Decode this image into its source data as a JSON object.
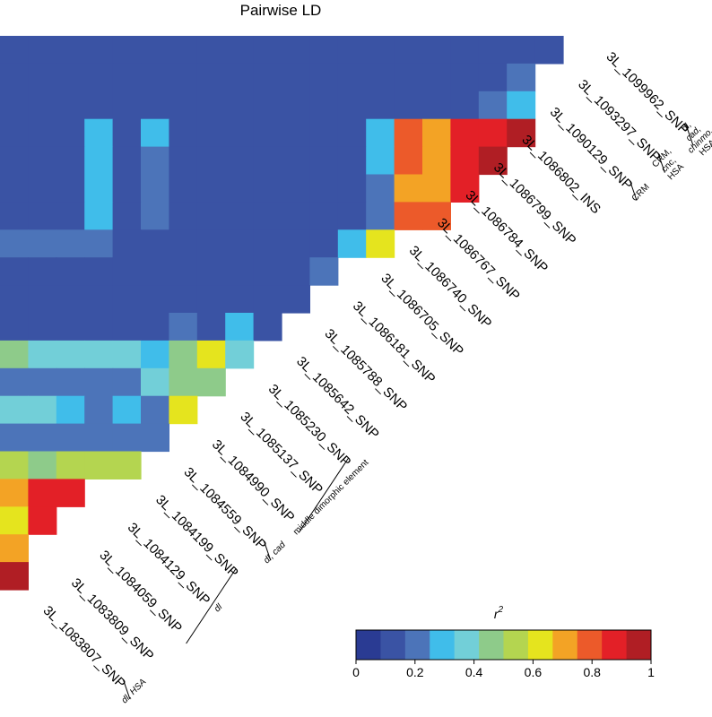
{
  "chart_data": {
    "type": "heatmap",
    "title": "Pairwise LD",
    "legend": {
      "title": "r",
      "title_superscript": "2",
      "ticks": [
        "0",
        "0.2",
        "0.4",
        "0.6",
        "0.8",
        "1"
      ],
      "tick_values": [
        0,
        0.2,
        0.4,
        0.6,
        0.8,
        1
      ],
      "range": [
        0,
        1
      ],
      "position": "bottom-right"
    },
    "color_stops": [
      "#2a3b93",
      "#3a53a4",
      "#4c74b9",
      "#40bdea",
      "#72cfd8",
      "#8ecb8a",
      "#b4d550",
      "#e5e41e",
      "#f3a325",
      "#ec5a2a",
      "#e32027",
      "#b01e24"
    ],
    "markers": [
      "3L_1099962_SNP",
      "3L_1093297_SNP",
      "3L_1090129_SNP",
      "3L_1086802_INS",
      "3L_1086799_SNP",
      "3L_1086784_SNP",
      "3L_1086767_SNP",
      "3L_1086740_SNP",
      "3L_1086705_SNP",
      "3L_1086181_SNP",
      "3L_1085788_SNP",
      "3L_1085642_SNP",
      "3L_1085230_SNP",
      "3L_1085137_SNP",
      "3L_1084990_SNP",
      "3L_1084559_SNP",
      "3L_1084199_SNP",
      "3L_1084129_SNP",
      "3L_1084059_SNP",
      "3L_1083809_SNP",
      "3L_1083807_SNP"
    ],
    "rows": [
      [
        0.12,
        0.12,
        0.12,
        0.12,
        0.12,
        0.12,
        0.12,
        0.12,
        0.12,
        0.12,
        0.12,
        0.15,
        0.12,
        0.12,
        0.12,
        0.12,
        0.12,
        0.12,
        0.12,
        0.12
      ],
      [
        0.12,
        0.12,
        0.12,
        0.12,
        0.12,
        0.15,
        0.12,
        0.15,
        0.15,
        0.15,
        0.15,
        0.15,
        0.12,
        0.12,
        0.15,
        0.15,
        0.15,
        0.15,
        0.2
      ],
      [
        0.15,
        0.15,
        0.15,
        0.12,
        0.15,
        0.12,
        0.15,
        0.15,
        0.15,
        0.12,
        0.15,
        0.12,
        0.12,
        0.12,
        0.15,
        0.15,
        0.15,
        0.23,
        0.3
      ],
      [
        0.15,
        0.15,
        0.15,
        0.3,
        0.15,
        0.3,
        0.15,
        0.15,
        0.15,
        0.15,
        0.15,
        0.15,
        0.15,
        0.3,
        0.78,
        0.68,
        0.86,
        0.9,
        0.98
      ],
      [
        0.15,
        0.15,
        0.15,
        0.3,
        0.15,
        0.22,
        0.15,
        0.15,
        0.15,
        0.15,
        0.15,
        0.15,
        0.15,
        0.3,
        0.78,
        0.7,
        0.88,
        0.92
      ],
      [
        0.15,
        0.15,
        0.15,
        0.3,
        0.15,
        0.22,
        0.15,
        0.12,
        0.15,
        0.15,
        0.15,
        0.15,
        0.15,
        0.2,
        0.72,
        0.7,
        0.88
      ],
      [
        0.15,
        0.15,
        0.15,
        0.3,
        0.15,
        0.22,
        0.15,
        0.15,
        0.15,
        0.12,
        0.15,
        0.15,
        0.15,
        0.2,
        0.78,
        0.78
      ],
      [
        0.2,
        0.2,
        0.2,
        0.2,
        0.15,
        0.15,
        0.15,
        0.15,
        0.15,
        0.15,
        0.15,
        0.12,
        0.3,
        0.6
      ],
      [
        0.15,
        0.12,
        0.15,
        0.15,
        0.15,
        0.15,
        0.15,
        0.15,
        0.12,
        0.15,
        0.15,
        0.2
      ],
      [
        0.12,
        0.12,
        0.12,
        0.12,
        0.12,
        0.12,
        0.12,
        0.12,
        0.15,
        0.15,
        0.15
      ],
      [
        0.12,
        0.12,
        0.12,
        0.1,
        0.1,
        0.12,
        0.22,
        0.12,
        0.3,
        0.12
      ],
      [
        0.42,
        0.38,
        0.35,
        0.35,
        0.35,
        0.28,
        0.42,
        0.62,
        0.35
      ],
      [
        0.2,
        0.2,
        0.2,
        0.2,
        0.2,
        0.38,
        0.45,
        0.48
      ],
      [
        0.35,
        0.35,
        0.3,
        0.2,
        0.3,
        0.2,
        0.66
      ],
      [
        0.2,
        0.2,
        0.2,
        0.2,
        0.2,
        0.2
      ],
      [
        0.5,
        0.45,
        0.5,
        0.5,
        0.55
      ],
      [
        0.73,
        0.85,
        0.9
      ],
      [
        0.65,
        0.85
      ],
      [
        0.73
      ],
      [
        0.93
      ]
    ],
    "annotations": [
      {
        "lines": [
          "dl,",
          "cad,",
          "chinmo,",
          "HSA"
        ],
        "italic_lines": 3,
        "marker_range": [
          "3L_1099962_SNP",
          "3L_1099962_SNP"
        ]
      },
      {
        "lines": [
          "CRM,",
          "cnc,",
          "HSA"
        ],
        "italic_lines": 0,
        "marker_range": [
          "3L_1093297_SNP",
          "3L_1093297_SNP"
        ]
      },
      {
        "lines": [
          "CRM"
        ],
        "italic_lines": 0,
        "marker_range": [
          "3L_1090129_SNP",
          "3L_1090129_SNP"
        ]
      },
      {
        "lines": [
          "middle dimorphic element"
        ],
        "italic_lines": 0,
        "marker_range": [
          "3L_1085230_SNP",
          "3L_1084990_SNP"
        ]
      },
      {
        "lines": [
          "dl, cad"
        ],
        "italic_lines": 1,
        "marker_range": [
          "3L_1084559_SNP",
          "3L_1084559_SNP"
        ]
      },
      {
        "lines": [
          "dl"
        ],
        "italic_lines": 1,
        "marker_range": [
          "3L_1084199_SNP",
          "3L_1084059_SNP"
        ]
      },
      {
        "lines": [
          "dl, HSA"
        ],
        "italic_lines": 1,
        "marker_range": [
          "3L_1083807_SNP",
          "3L_1083807_SNP"
        ]
      }
    ]
  }
}
